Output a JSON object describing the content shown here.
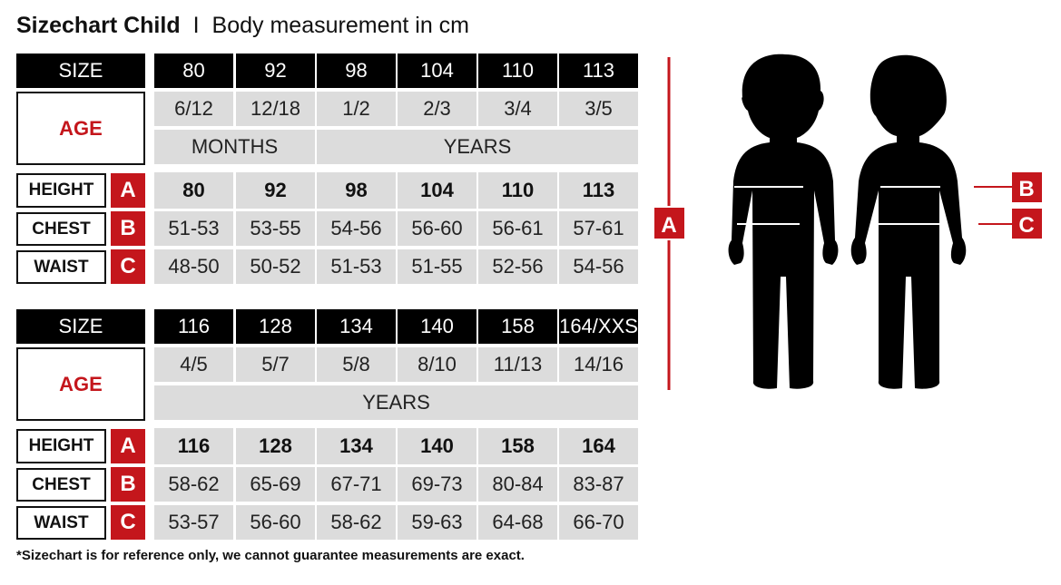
{
  "title": {
    "main": "Sizechart Child",
    "separator": "I",
    "subtitle": "Body measurement in cm"
  },
  "labels": {
    "size": "SIZE",
    "age": "AGE",
    "height": "HEIGHT",
    "chest": "CHEST",
    "waist": "WAIST",
    "letter_height": "A",
    "letter_chest": "B",
    "letter_waist": "C"
  },
  "tables": [
    {
      "sizes": [
        "80",
        "92",
        "98",
        "104",
        "110",
        "113"
      ],
      "ages": [
        "6/12",
        "12/18",
        "1/2",
        "2/3",
        "3/4",
        "3/5"
      ],
      "age_units": [
        {
          "label": "MONTHS",
          "span": 2
        },
        {
          "label": "YEARS",
          "span": 4
        }
      ],
      "height": [
        "80",
        "92",
        "98",
        "104",
        "110",
        "113"
      ],
      "chest": [
        "51-53",
        "53-55",
        "54-56",
        "56-60",
        "56-61",
        "57-61"
      ],
      "waist": [
        "48-50",
        "50-52",
        "51-53",
        "51-55",
        "52-56",
        "54-56"
      ]
    },
    {
      "sizes": [
        "116",
        "128",
        "134",
        "140",
        "158",
        "164/XXS"
      ],
      "ages": [
        "4/5",
        "5/7",
        "5/8",
        "8/10",
        "11/13",
        "14/16"
      ],
      "age_units": [
        {
          "label": "YEARS",
          "span": 6
        }
      ],
      "height": [
        "116",
        "128",
        "134",
        "140",
        "158",
        "164"
      ],
      "chest": [
        "58-62",
        "65-69",
        "67-71",
        "69-73",
        "80-84",
        "83-87"
      ],
      "waist": [
        "53-57",
        "56-60",
        "58-62",
        "59-63",
        "64-68",
        "66-70"
      ]
    }
  ],
  "figure": {
    "marker_a": "A",
    "marker_b": "B",
    "marker_c": "C"
  },
  "footnote": "*Sizechart is for reference only, we cannot guarantee measurements are exact.",
  "colors": {
    "accent": "#c4161c",
    "header": "#000000",
    "cell": "#dcdcdc"
  }
}
